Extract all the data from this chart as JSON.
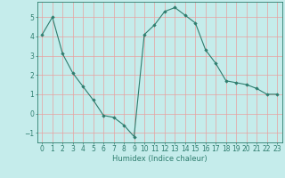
{
  "x": [
    0,
    1,
    2,
    3,
    4,
    5,
    6,
    7,
    8,
    9,
    10,
    11,
    12,
    13,
    14,
    15,
    16,
    17,
    18,
    19,
    20,
    21,
    22,
    23
  ],
  "y": [
    4.1,
    5.0,
    3.1,
    2.1,
    1.4,
    0.7,
    -0.1,
    -0.2,
    -0.6,
    -1.2,
    4.1,
    4.6,
    5.3,
    5.5,
    5.1,
    4.7,
    3.3,
    2.6,
    1.7,
    1.6,
    1.5,
    1.3,
    1.0,
    1.0
  ],
  "line_color": "#2e7d6e",
  "marker": "D",
  "marker_size": 1.8,
  "bg_color": "#c5eceb",
  "grid_major_color": "#f0b8b8",
  "grid_minor_color": "#c5eceb",
  "xlabel": "Humidex (Indice chaleur)",
  "xlabel_fontsize": 6.0,
  "tick_fontsize": 5.5,
  "ylim": [
    -1.5,
    5.8
  ],
  "xlim": [
    -0.5,
    23.5
  ],
  "yticks": [
    -1,
    0,
    1,
    2,
    3,
    4,
    5
  ],
  "xticks": [
    0,
    1,
    2,
    3,
    4,
    5,
    6,
    7,
    8,
    9,
    10,
    11,
    12,
    13,
    14,
    15,
    16,
    17,
    18,
    19,
    20,
    21,
    22,
    23
  ]
}
